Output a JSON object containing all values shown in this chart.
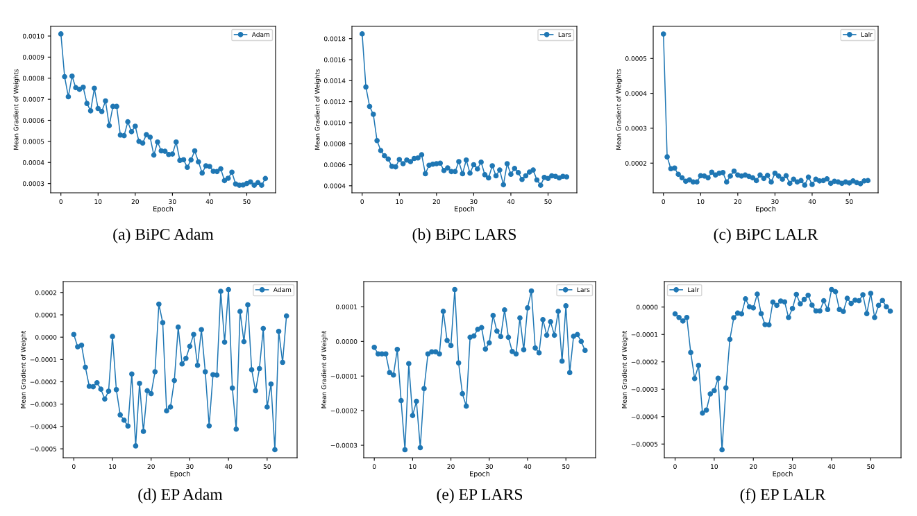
{
  "chart_data": [
    {
      "type": "line",
      "title": "(a) BiPC Adam",
      "xlabel": "Epoch",
      "ylabel": "Mean Gradient of Weights",
      "legend": "top right",
      "marker": "circle",
      "line_style": "solid",
      "grid": false,
      "x": [
        0,
        1,
        2,
        3,
        4,
        5,
        6,
        7,
        8,
        9,
        10,
        11,
        12,
        13,
        14,
        15,
        16,
        17,
        18,
        19,
        20,
        21,
        22,
        23,
        24,
        25,
        26,
        27,
        28,
        29,
        30,
        31,
        32,
        33,
        34,
        35,
        36,
        37,
        38,
        39,
        40,
        41,
        42,
        43,
        44,
        45,
        46,
        47,
        48,
        49,
        50,
        51,
        52,
        53,
        54,
        55
      ],
      "series": [
        {
          "name": "Adam",
          "color": "#1f77b4",
          "values": [
            0.00101,
            0.000807,
            0.000712,
            0.00081,
            0.000755,
            0.000747,
            0.000757,
            0.00068,
            0.000645,
            0.000752,
            0.000656,
            0.000642,
            0.000692,
            0.000575,
            0.000666,
            0.000666,
            0.00053,
            0.000527,
            0.000593,
            0.000546,
            0.000572,
            0.0005,
            0.000492,
            0.000532,
            0.00052,
            0.000435,
            0.000497,
            0.000455,
            0.000453,
            0.000438,
            0.00044,
            0.000497,
            0.00041,
            0.000413,
            0.000377,
            0.000412,
            0.000455,
            0.000403,
            0.00035,
            0.000384,
            0.000381,
            0.000358,
            0.000357,
            0.00037,
            0.000314,
            0.000325,
            0.000354,
            0.000298,
            0.000292,
            0.000293,
            0.0003,
            0.000308,
            0.000292,
            0.000304,
            0.000292,
            0.000324
          ]
        }
      ],
      "xlim": [
        -2.75,
        57.75
      ],
      "xticks": [
        0,
        10,
        20,
        30,
        40,
        50
      ],
      "ylim": [
        0.000256,
        0.001046
      ],
      "yticks": [
        {
          "value": 0.0003,
          "label": "0.0003"
        },
        {
          "value": 0.0004,
          "label": "0.0004"
        },
        {
          "value": 0.0005,
          "label": "0.0005"
        },
        {
          "value": 0.0006,
          "label": "0.0006"
        },
        {
          "value": 0.0007,
          "label": "0.0007"
        },
        {
          "value": 0.0008,
          "label": "0.0008"
        },
        {
          "value": 0.0009,
          "label": "0.0009"
        },
        {
          "value": 0.001,
          "label": "0.0010"
        }
      ]
    },
    {
      "type": "line",
      "title": "(b) BiPC LARS",
      "xlabel": "Epoch",
      "ylabel": "Mean Gradient of Weights",
      "legend": "top right",
      "marker": "circle",
      "line_style": "solid",
      "grid": false,
      "x": [
        0,
        1,
        2,
        3,
        4,
        5,
        6,
        7,
        8,
        9,
        10,
        11,
        12,
        13,
        14,
        15,
        16,
        17,
        18,
        19,
        20,
        21,
        22,
        23,
        24,
        25,
        26,
        27,
        28,
        29,
        30,
        31,
        32,
        33,
        34,
        35,
        36,
        37,
        38,
        39,
        40,
        41,
        42,
        43,
        44,
        45,
        46,
        47,
        48,
        49,
        50,
        51,
        52,
        53,
        54,
        55
      ],
      "series": [
        {
          "name": "Lars",
          "color": "#1f77b4",
          "values": [
            0.001845,
            0.00134,
            0.001155,
            0.00108,
            0.00083,
            0.000735,
            0.000685,
            0.000655,
            0.000585,
            0.00058,
            0.00065,
            0.00061,
            0.000645,
            0.00063,
            0.00066,
            0.000665,
            0.000695,
            0.000515,
            0.000595,
            0.000605,
            0.00061,
            0.000615,
            0.000545,
            0.00057,
            0.000535,
            0.000535,
            0.00063,
            0.000515,
            0.000645,
            0.00052,
            0.0006,
            0.00056,
            0.000625,
            0.000505,
            0.000475,
            0.00059,
            0.000495,
            0.00055,
            0.00041,
            0.00061,
            0.00051,
            0.000565,
            0.000525,
            0.00046,
            0.000495,
            0.00053,
            0.00055,
            0.000455,
            0.000405,
            0.00048,
            0.00047,
            0.000495,
            0.00049,
            0.000475,
            0.00049,
            0.000485
          ]
        }
      ],
      "xlim": [
        -2.75,
        57.75
      ],
      "xticks": [
        0,
        10,
        20,
        30,
        40,
        50
      ],
      "ylim": [
        0.000333,
        0.001917
      ],
      "yticks": [
        {
          "value": 0.0004,
          "label": "0.0004"
        },
        {
          "value": 0.0006,
          "label": "0.0006"
        },
        {
          "value": 0.0008,
          "label": "0.0008"
        },
        {
          "value": 0.001,
          "label": "0.0010"
        },
        {
          "value": 0.0012,
          "label": "0.0012"
        },
        {
          "value": 0.0014,
          "label": "0.0014"
        },
        {
          "value": 0.0016,
          "label": "0.0016"
        },
        {
          "value": 0.0018,
          "label": "0.0018"
        }
      ]
    },
    {
      "type": "line",
      "title": "(c) BiPC LALR",
      "xlabel": "Epoch",
      "ylabel": "Mean Gradient of Weights",
      "legend": "top right",
      "marker": "circle",
      "line_style": "solid",
      "grid": false,
      "x": [
        0,
        1,
        2,
        3,
        4,
        5,
        6,
        7,
        8,
        9,
        10,
        11,
        12,
        13,
        14,
        15,
        16,
        17,
        18,
        19,
        20,
        21,
        22,
        23,
        24,
        25,
        26,
        27,
        28,
        29,
        30,
        31,
        32,
        33,
        34,
        35,
        36,
        37,
        38,
        39,
        40,
        41,
        42,
        43,
        44,
        45,
        46,
        47,
        48,
        49,
        50,
        51,
        52,
        53,
        54,
        55
      ],
      "series": [
        {
          "name": "Lalr",
          "color": "#1f77b4",
          "values": [
            0.00057,
            0.000218,
            0.000184,
            0.000186,
            0.000168,
            0.000158,
            0.000148,
            0.000152,
            0.000146,
            0.000146,
            0.000164,
            0.000163,
            0.000158,
            0.000174,
            0.000166,
            0.000171,
            0.000173,
            0.000146,
            0.000163,
            0.000177,
            0.000166,
            0.000163,
            0.000166,
            0.000162,
            0.000158,
            0.00015,
            0.000166,
            0.000156,
            0.000165,
            0.000146,
            0.000171,
            0.000163,
            0.000154,
            0.000164,
            0.000142,
            0.000154,
            0.000146,
            0.00015,
            0.000137,
            0.00016,
            0.000139,
            0.000154,
            0.000149,
            0.00015,
            0.000155,
            0.000142,
            0.000148,
            0.000146,
            0.000142,
            0.000146,
            0.000143,
            0.000149,
            0.000144,
            0.000141,
            0.000149,
            0.00015
          ]
        }
      ],
      "xlim": [
        -2.75,
        57.75
      ],
      "xticks": [
        0,
        10,
        20,
        30,
        40,
        50
      ],
      "ylim": [
        0.000115,
        0.000592
      ],
      "yticks": [
        {
          "value": 0.0002,
          "label": "0.0002"
        },
        {
          "value": 0.0003,
          "label": "0.0003"
        },
        {
          "value": 0.0004,
          "label": "0.0004"
        },
        {
          "value": 0.0005,
          "label": "0.0005"
        }
      ]
    },
    {
      "type": "line",
      "title": "(d) EP Adam",
      "xlabel": "Epoch",
      "ylabel": "Mean Gradient of Weight",
      "legend": "top right",
      "marker": "circle",
      "line_style": "solid",
      "grid": false,
      "x": [
        0,
        1,
        2,
        3,
        4,
        5,
        6,
        7,
        8,
        9,
        10,
        11,
        12,
        13,
        14,
        15,
        16,
        17,
        18,
        19,
        20,
        21,
        22,
        23,
        24,
        25,
        26,
        27,
        28,
        29,
        30,
        31,
        32,
        33,
        34,
        35,
        36,
        37,
        38,
        39,
        40,
        41,
        42,
        43,
        44,
        45,
        46,
        47,
        48,
        49,
        50,
        51,
        52,
        53,
        54,
        55
      ],
      "series": [
        {
          "name": "Adam",
          "color": "#1f77b4",
          "values": [
            1.2e-05,
            -4.3e-05,
            -3.6e-05,
            -0.000135,
            -0.00022,
            -0.000222,
            -0.000204,
            -0.000233,
            -0.000277,
            -0.000242,
            3e-06,
            -0.000235,
            -0.000348,
            -0.000372,
            -0.000398,
            -0.000165,
            -0.000487,
            -0.000207,
            -0.000422,
            -0.00024,
            -0.000253,
            -0.000155,
            0.000148,
            6.5e-05,
            -0.00033,
            -0.000313,
            -0.000194,
            4.5e-05,
            -0.00012,
            -9.5e-05,
            -4.1e-05,
            1.2e-05,
            -0.000126,
            3.4e-05,
            -0.000155,
            -0.000397,
            -0.000168,
            -0.00017,
            0.000205,
            -2.2e-05,
            0.000213,
            -0.000228,
            -0.000412,
            0.000115,
            -2e-05,
            0.000145,
            -0.000146,
            -0.00024,
            -0.000141,
            3.9e-05,
            -0.000313,
            -0.00021,
            -0.000504,
            2.6e-05,
            -0.000113,
            9.5e-05
          ]
        }
      ],
      "xlim": [
        -2.75,
        57.75
      ],
      "xticks": [
        0,
        10,
        20,
        30,
        40,
        50
      ],
      "ylim": [
        -0.00054,
        0.000249
      ],
      "yticks": [
        {
          "value": -0.0005,
          "label": "−0.0005"
        },
        {
          "value": -0.0004,
          "label": "−0.0004"
        },
        {
          "value": -0.0003,
          "label": "−0.0003"
        },
        {
          "value": -0.0002,
          "label": "−0.0002"
        },
        {
          "value": -0.0001,
          "label": "−0.0001"
        },
        {
          "value": 0,
          "label": "0.0000"
        },
        {
          "value": 0.0001,
          "label": "0.0001"
        },
        {
          "value": 0.0002,
          "label": "0.0002"
        }
      ]
    },
    {
      "type": "line",
      "title": "(e) EP LARS",
      "xlabel": "Epoch",
      "ylabel": "Mean Gradient of Weight",
      "legend": "top right",
      "marker": "circle",
      "line_style": "solid",
      "grid": false,
      "x": [
        0,
        1,
        2,
        3,
        4,
        5,
        6,
        7,
        8,
        9,
        10,
        11,
        12,
        13,
        14,
        15,
        16,
        17,
        18,
        19,
        20,
        21,
        22,
        23,
        24,
        25,
        26,
        27,
        28,
        29,
        30,
        31,
        32,
        33,
        34,
        35,
        36,
        37,
        38,
        39,
        40,
        41,
        42,
        43,
        44,
        45,
        46,
        47,
        48,
        49,
        50,
        51,
        52,
        53,
        54,
        55
      ],
      "series": [
        {
          "name": "Lars",
          "color": "#1f77b4",
          "values": [
            -1.7e-05,
            -3.6e-05,
            -3.6e-05,
            -3.6e-05,
            -9e-05,
            -9.7e-05,
            -2.3e-05,
            -0.000171,
            -0.000313,
            -6.4e-05,
            -0.000214,
            -0.000173,
            -0.000307,
            -0.000136,
            -3.6e-05,
            -3e-05,
            -3e-05,
            -3.6e-05,
            8.7e-05,
            3e-06,
            -1.2e-05,
            0.00015,
            -6.2e-05,
            -0.000151,
            -0.000187,
            1.2e-05,
            1.6e-05,
            3.5e-05,
            4e-05,
            -2.2e-05,
            -4e-06,
            7.5e-05,
            3e-05,
            1.4e-05,
            9.1e-05,
            1.2e-05,
            -2.9e-05,
            -3.6e-05,
            6.8e-05,
            -2.4e-05,
            9.7e-05,
            0.000146,
            -1.9e-05,
            -3.3e-05,
            6.3e-05,
            1.8e-05,
            5.7e-05,
            1.8e-05,
            8.7e-05,
            -5.7e-05,
            0.000103,
            -9e-05,
            1.5e-05,
            2e-05,
            0.0,
            -2.6e-05
          ]
        }
      ],
      "xlim": [
        -2.75,
        57.75
      ],
      "xticks": [
        0,
        10,
        20,
        30,
        40,
        50
      ],
      "ylim": [
        -0.000336,
        0.000173
      ],
      "yticks": [
        {
          "value": -0.0003,
          "label": "−0.0003"
        },
        {
          "value": -0.0002,
          "label": "−0.0002"
        },
        {
          "value": -0.0001,
          "label": "−0.0001"
        },
        {
          "value": 0,
          "label": "0.0000"
        },
        {
          "value": 0.0001,
          "label": "0.0001"
        }
      ]
    },
    {
      "type": "line",
      "title": "(f) EP LALR",
      "xlabel": "Epoch",
      "ylabel": "Mean Gradient of Weight",
      "legend": "top left",
      "marker": "circle",
      "line_style": "solid",
      "grid": false,
      "x": [
        0,
        1,
        2,
        3,
        4,
        5,
        6,
        7,
        8,
        9,
        10,
        11,
        12,
        13,
        14,
        15,
        16,
        17,
        18,
        19,
        20,
        21,
        22,
        23,
        24,
        25,
        26,
        27,
        28,
        29,
        30,
        31,
        32,
        33,
        34,
        35,
        36,
        37,
        38,
        39,
        40,
        41,
        42,
        43,
        44,
        45,
        46,
        47,
        48,
        49,
        50,
        51,
        52,
        53,
        54,
        55
      ],
      "series": [
        {
          "name": "Lalr",
          "color": "#1f77b4",
          "values": [
            -2.5e-05,
            -3.8e-05,
            -5.1e-05,
            -3.8e-05,
            -0.000166,
            -0.000261,
            -0.000213,
            -0.000387,
            -0.000376,
            -0.000317,
            -0.000305,
            -0.00026,
            -0.000521,
            -0.000295,
            -0.000118,
            -3.9e-05,
            -2.2e-05,
            -2.5e-05,
            3e-05,
            1e-06,
            -3e-06,
            4.7e-05,
            -2.4e-05,
            -6.4e-05,
            -6.5e-05,
            1.8e-05,
            6e-06,
            2.2e-05,
            1.9e-05,
            -3.8e-05,
            -5e-06,
            4.6e-05,
            1.2e-05,
            2.8e-05,
            4.3e-05,
            7e-06,
            -1.4e-05,
            -1.4e-05,
            2.3e-05,
            -9e-06,
            6.4e-05,
            5.6e-05,
            -9e-06,
            -1.6e-05,
            3.2e-05,
            1.3e-05,
            2.5e-05,
            2.3e-05,
            4.5e-05,
            -2.4e-05,
            5e-05,
            -3.8e-05,
            6e-06,
            2.4e-05,
            1e-06,
            -1.5e-05
          ]
        }
      ],
      "xlim": [
        -2.75,
        57.75
      ],
      "xticks": [
        0,
        10,
        20,
        30,
        40,
        50
      ],
      "ylim": [
        -0.00055,
        9.3e-05
      ],
      "yticks": [
        {
          "value": -0.0005,
          "label": "−0.0005"
        },
        {
          "value": -0.0004,
          "label": "−0.0004"
        },
        {
          "value": -0.0003,
          "label": "−0.0003"
        },
        {
          "value": -0.0002,
          "label": "−0.0002"
        },
        {
          "value": -0.0001,
          "label": "−0.0001"
        },
        {
          "value": 0,
          "label": "0.0000"
        }
      ]
    }
  ]
}
